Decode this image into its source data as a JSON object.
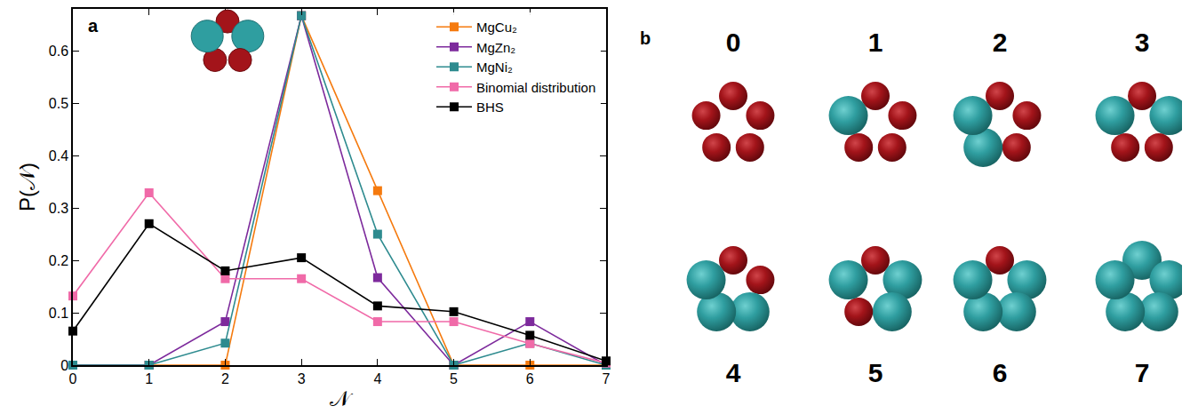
{
  "chart_data": {
    "type": "line",
    "panel_label": "a",
    "x_label": "𝒩",
    "y_label": "P(𝒩)",
    "x": [
      0,
      1,
      2,
      3,
      4,
      5,
      6,
      7
    ],
    "series": [
      {
        "name": "MgCu₂",
        "color": "#f57a0e",
        "marker": "square",
        "values": [
          0,
          0,
          0,
          0.667,
          0.333,
          0,
          0,
          0
        ]
      },
      {
        "name": "MgZn₂",
        "color": "#7d2a9c",
        "marker": "square",
        "values": [
          0,
          0,
          0.083,
          0.667,
          0.167,
          0,
          0.083,
          0
        ]
      },
      {
        "name": "MgNi₂",
        "color": "#2e8b8f",
        "marker": "square",
        "values": [
          0,
          0,
          0.042,
          0.667,
          0.25,
          0,
          0.042,
          0
        ]
      },
      {
        "name": "Binomial distribution",
        "color": "#f06aa8",
        "marker": "square",
        "values": [
          0.132,
          0.329,
          0.165,
          0.165,
          0.083,
          0.083,
          0.041,
          0.004
        ]
      },
      {
        "name": "BHS",
        "color": "#000000",
        "marker": "square",
        "values": [
          0.065,
          0.27,
          0.18,
          0.205,
          0.113,
          0.102,
          0.057,
          0.008
        ]
      }
    ],
    "xlim": [
      0,
      7
    ],
    "xticks": [
      0,
      1,
      2,
      3,
      4,
      5,
      6,
      7
    ],
    "ylim": [
      0,
      0.68
    ],
    "yticks": [
      0,
      0.1,
      0.2,
      0.3,
      0.4,
      0.5,
      0.6
    ],
    "grid": false,
    "legend": "top right"
  },
  "diagram": {
    "panel_label": "b",
    "labels": [
      "0",
      "1",
      "2",
      "3",
      "4",
      "5",
      "6",
      "7"
    ]
  }
}
